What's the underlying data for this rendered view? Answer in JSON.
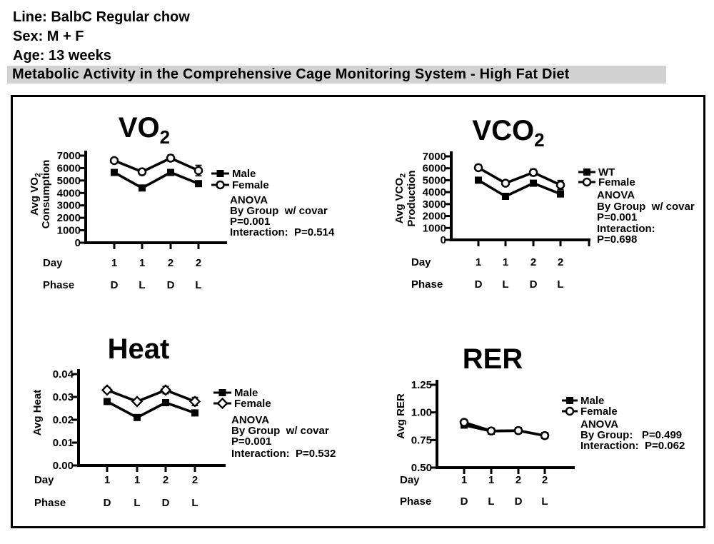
{
  "page": {
    "header": {
      "line": "Line: BalbC Regular chow",
      "sex": "Sex: M + F",
      "age": "Age: 13 weeks",
      "banner": "Metabolic Activity in the Comprehensive Cage Monitoring System - High Fat Diet"
    }
  },
  "colors": {
    "ink": "#000000",
    "paper": "#ffffff",
    "banner_bg": "#d2d2d2"
  },
  "chart_data": [
    {
      "id": "vo2",
      "type": "line",
      "title": "VO",
      "title_sub": "2",
      "ylabel_lines": [
        {
          "text": "Avg VO",
          "sub": "2"
        },
        {
          "text": "Consumption",
          "sub": ""
        }
      ],
      "ylim": [
        0,
        7000
      ],
      "yticks": [
        "0",
        "1000",
        "2000",
        "3000",
        "4000",
        "5000",
        "6000",
        "7000"
      ],
      "x_rows": {
        "day_label": "Day",
        "day": [
          "1",
          "1",
          "2",
          "2"
        ],
        "phase_label": "Phase",
        "phase": [
          "D",
          "L",
          "D",
          "L"
        ]
      },
      "legend_position": "right",
      "grid": false,
      "series": [
        {
          "name": "Male",
          "marker": "filled-square",
          "values": [
            5650,
            4400,
            5650,
            4750
          ],
          "errors": [
            120,
            100,
            120,
            110
          ]
        },
        {
          "name": "Female",
          "marker": "open-circle",
          "values": [
            6600,
            5700,
            6800,
            5800
          ],
          "errors": [
            200,
            180,
            250,
            420
          ]
        }
      ],
      "stats_lines": [
        "ANOVA",
        "By Group  w/ covar",
        "P=0.001",
        "Interaction:  P=0.514"
      ]
    },
    {
      "id": "vco2",
      "type": "line",
      "title": "VCO",
      "title_sub": "2",
      "ylabel_lines": [
        {
          "text": "Avg VCO",
          "sub": "2"
        },
        {
          "text": "Production",
          "sub": ""
        }
      ],
      "ylim": [
        0,
        7000
      ],
      "yticks": [
        "0",
        "1000",
        "2000",
        "3000",
        "4000",
        "5000",
        "6000",
        "7000"
      ],
      "x_rows": {
        "day_label": "Day",
        "day": [
          "1",
          "1",
          "2",
          "2"
        ],
        "phase_label": "Phase",
        "phase": [
          "D",
          "L",
          "D",
          "L"
        ]
      },
      "legend_position": "right",
      "grid": false,
      "series": [
        {
          "name": "WT",
          "marker": "filled-square",
          "values": [
            5000,
            3650,
            4750,
            3850
          ],
          "errors": [
            120,
            100,
            140,
            130
          ]
        },
        {
          "name": "Female",
          "marker": "open-circle",
          "values": [
            6050,
            4750,
            5650,
            4600
          ],
          "errors": [
            250,
            200,
            280,
            380
          ]
        }
      ],
      "stats_lines": [
        "ANOVA",
        "By Group  w/ covar",
        "P=0.001",
        "Interaction:",
        "P=0.698"
      ]
    },
    {
      "id": "heat",
      "type": "line",
      "title": "Heat",
      "title_sub": "",
      "ylabel_lines": [
        {
          "text": "Avg Heat",
          "sub": ""
        }
      ],
      "ylim": [
        0,
        0.04
      ],
      "yticks": [
        "0.00",
        "0.01",
        "0.02",
        "0.03",
        "0.04"
      ],
      "x_rows": {
        "day_label": "Day",
        "day": [
          "1",
          "1",
          "2",
          "2"
        ],
        "phase_label": "Phase",
        "phase": [
          "D",
          "L",
          "D",
          "L"
        ]
      },
      "legend_position": "right",
      "grid": false,
      "series": [
        {
          "name": "Male",
          "marker": "filled-square",
          "values": [
            0.028,
            0.021,
            0.0275,
            0.023
          ],
          "errors": [
            0.0005,
            0.0004,
            0.0005,
            0.0005
          ]
        },
        {
          "name": "Female",
          "marker": "open-diamond",
          "values": [
            0.033,
            0.028,
            0.033,
            0.028
          ],
          "errors": [
            0.0012,
            0.0009,
            0.0016,
            0.0018
          ]
        }
      ],
      "stats_lines": [
        "ANOVA",
        "By Group  w/ covar",
        "P=0.001",
        "Interaction:  P=0.532"
      ]
    },
    {
      "id": "rer",
      "type": "line",
      "title": "RER",
      "title_sub": "",
      "ylabel_lines": [
        {
          "text": "Avg RER",
          "sub": ""
        }
      ],
      "ylim": [
        0.5,
        1.25
      ],
      "yticks": [
        "0.50",
        "0.75",
        "1.00",
        "1.25"
      ],
      "x_rows": {
        "day_label": "Day",
        "day": [
          "1",
          "1",
          "2",
          "2"
        ],
        "phase_label": "Phase",
        "phase": [
          "D",
          "L",
          "D",
          "L"
        ]
      },
      "legend_position": "right",
      "grid": false,
      "series": [
        {
          "name": "Male",
          "marker": "filled-square",
          "values": [
            0.885,
            0.83,
            0.835,
            0.79
          ],
          "errors": [
            0.018,
            0.012,
            0.012,
            0.02
          ]
        },
        {
          "name": "Female",
          "marker": "open-circle",
          "values": [
            0.91,
            0.832,
            0.835,
            0.79
          ],
          "errors": [
            0.015,
            0.012,
            0.012,
            0.02
          ]
        }
      ],
      "stats_lines": [
        "ANOVA",
        "By Group:   P=0.499",
        "Interaction:  P=0.062"
      ]
    }
  ]
}
